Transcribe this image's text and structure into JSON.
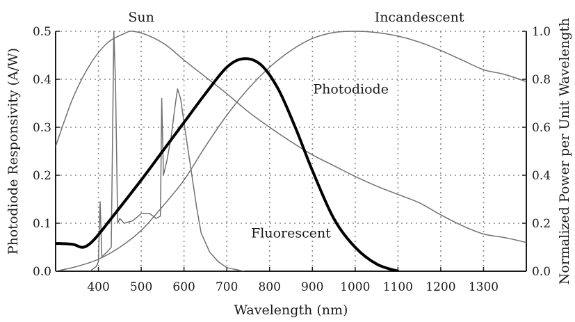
{
  "chart_data": {
    "type": "line",
    "xlabel": "Wavelength (nm)",
    "ylabel_left": "Photodiode Responsivity (A/W)",
    "ylabel_right": "Normalized Power per Unit Wavelength",
    "xlim": [
      300,
      1400
    ],
    "ylim_left": [
      0,
      0.5
    ],
    "ylim_right": [
      0,
      1.0
    ],
    "grid": true,
    "x_ticks": [
      400,
      500,
      600,
      700,
      800,
      900,
      1000,
      1100,
      1200,
      1300
    ],
    "y_ticks_left": [
      "0.0",
      "0.1",
      "0.2",
      "0.3",
      "0.4",
      "0.5"
    ],
    "y_ticks_right": [
      "0.0",
      "0.2",
      "0.4",
      "0.6",
      "0.8",
      "1.0"
    ],
    "series": [
      {
        "name": "Sun",
        "axis": "right",
        "color": "#707070",
        "width": 1.5,
        "points": [
          [
            300,
            0.52
          ],
          [
            340,
            0.72
          ],
          [
            380,
            0.86
          ],
          [
            420,
            0.95
          ],
          [
            460,
            0.99
          ],
          [
            480,
            1.0
          ],
          [
            520,
            0.98
          ],
          [
            560,
            0.94
          ],
          [
            600,
            0.88
          ],
          [
            650,
            0.81
          ],
          [
            700,
            0.74
          ],
          [
            750,
            0.665
          ],
          [
            800,
            0.6
          ],
          [
            850,
            0.54
          ],
          [
            900,
            0.485
          ],
          [
            950,
            0.44
          ],
          [
            1000,
            0.395
          ],
          [
            1050,
            0.355
          ],
          [
            1100,
            0.32
          ],
          [
            1150,
            0.285
          ],
          [
            1200,
            0.235
          ],
          [
            1250,
            0.19
          ],
          [
            1300,
            0.155
          ],
          [
            1350,
            0.14
          ],
          [
            1400,
            0.12
          ]
        ]
      },
      {
        "name": "Incandescent",
        "axis": "right",
        "color": "#707070",
        "width": 1.5,
        "points": [
          [
            300,
            0.0
          ],
          [
            350,
            0.02
          ],
          [
            400,
            0.05
          ],
          [
            450,
            0.1
          ],
          [
            500,
            0.17
          ],
          [
            550,
            0.27
          ],
          [
            600,
            0.38
          ],
          [
            650,
            0.52
          ],
          [
            700,
            0.65
          ],
          [
            750,
            0.76
          ],
          [
            800,
            0.85
          ],
          [
            850,
            0.92
          ],
          [
            900,
            0.97
          ],
          [
            950,
            0.995
          ],
          [
            1000,
            1.0
          ],
          [
            1050,
            0.995
          ],
          [
            1100,
            0.98
          ],
          [
            1150,
            0.955
          ],
          [
            1200,
            0.92
          ],
          [
            1250,
            0.88
          ],
          [
            1300,
            0.84
          ],
          [
            1350,
            0.82
          ],
          [
            1400,
            0.79
          ]
        ]
      },
      {
        "name": "Fluorescent",
        "axis": "right",
        "color": "#707070",
        "width": 1.5,
        "points": [
          [
            380,
            0.0
          ],
          [
            395,
            0.02
          ],
          [
            400,
            0.04
          ],
          [
            404,
            0.29
          ],
          [
            408,
            0.06
          ],
          [
            420,
            0.08
          ],
          [
            430,
            0.1
          ],
          [
            436,
            1.0
          ],
          [
            440,
            0.78
          ],
          [
            445,
            0.2
          ],
          [
            450,
            0.22
          ],
          [
            460,
            0.2
          ],
          [
            480,
            0.21
          ],
          [
            500,
            0.24
          ],
          [
            520,
            0.24
          ],
          [
            535,
            0.22
          ],
          [
            545,
            0.23
          ],
          [
            548,
            0.72
          ],
          [
            552,
            0.4
          ],
          [
            560,
            0.46
          ],
          [
            570,
            0.56
          ],
          [
            580,
            0.7
          ],
          [
            585,
            0.76
          ],
          [
            592,
            0.72
          ],
          [
            600,
            0.62
          ],
          [
            610,
            0.5
          ],
          [
            620,
            0.38
          ],
          [
            630,
            0.26
          ],
          [
            640,
            0.16
          ],
          [
            660,
            0.08
          ],
          [
            680,
            0.04
          ],
          [
            700,
            0.015
          ],
          [
            740,
            0.0
          ]
        ]
      },
      {
        "name": "Photodiode",
        "axis": "left",
        "color": "#000000",
        "width": 4,
        "points": [
          [
            300,
            0.058
          ],
          [
            340,
            0.056
          ],
          [
            365,
            0.05
          ],
          [
            390,
            0.066
          ],
          [
            430,
            0.11
          ],
          [
            500,
            0.19
          ],
          [
            550,
            0.25
          ],
          [
            600,
            0.31
          ],
          [
            650,
            0.37
          ],
          [
            700,
            0.425
          ],
          [
            740,
            0.443
          ],
          [
            780,
            0.43
          ],
          [
            820,
            0.38
          ],
          [
            860,
            0.3
          ],
          [
            900,
            0.21
          ],
          [
            950,
            0.11
          ],
          [
            1000,
            0.05
          ],
          [
            1050,
            0.015
          ],
          [
            1100,
            0.0
          ]
        ]
      }
    ],
    "annotations": [
      {
        "text": "Sun",
        "x": 500,
        "y_right": 1.04
      },
      {
        "text": "Incandescent",
        "x": 1150,
        "y_right": 1.04
      },
      {
        "text": "Photodiode",
        "x": 990,
        "y_right": 0.74
      },
      {
        "text": "Fluorescent",
        "x": 850,
        "y_right": 0.14
      }
    ]
  }
}
